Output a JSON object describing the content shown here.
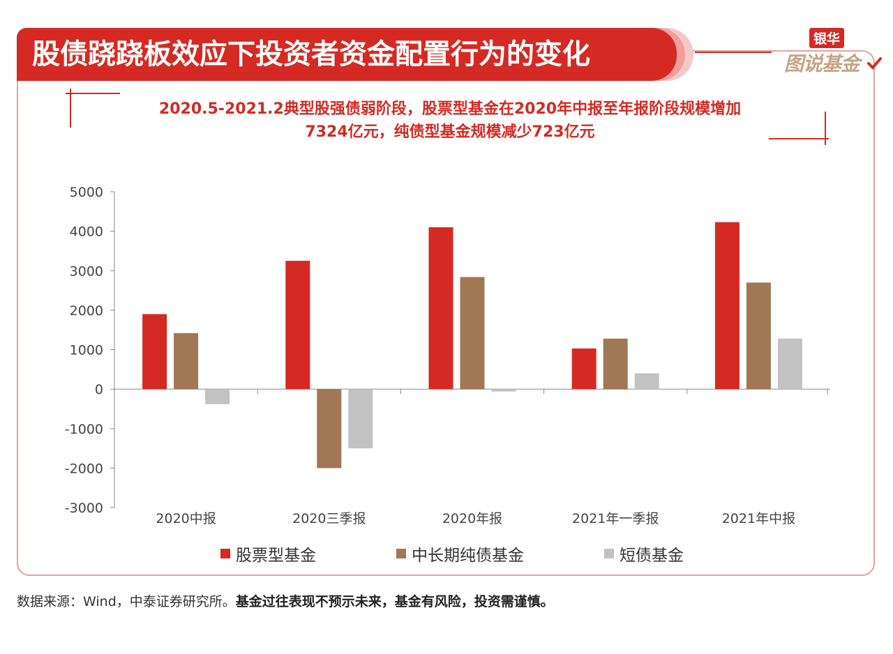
{
  "header": {
    "title": "股债跷跷板效应下投资者资金配置行为的变化",
    "logo_top": "银华",
    "logo_bottom": "图说基金"
  },
  "subtitle": {
    "line1": "2020.5-2021.2典型股强债弱阶段，股票型基金在2020年中报至年报阶段规模增加",
    "line2": "7324亿元，纯债型基金规模减少723亿元"
  },
  "colors": {
    "accent": "#d42a23",
    "series": [
      "#d42a23",
      "#a07855",
      "#c2c2c2"
    ]
  },
  "chart_data": {
    "type": "bar",
    "categories": [
      "2020中报",
      "2020三季报",
      "2020年报",
      "2021年一季报",
      "2021年中报"
    ],
    "series": [
      {
        "name": "股票型基金",
        "values": [
          1900,
          3250,
          4100,
          1030,
          4230
        ]
      },
      {
        "name": "中长期纯债基金",
        "values": [
          1420,
          -2000,
          2840,
          1280,
          2700
        ]
      },
      {
        "name": "短债基金",
        "values": [
          -380,
          -1500,
          -60,
          400,
          1280
        ]
      }
    ],
    "yticks": [
      "5000",
      "4000",
      "3000",
      "2000",
      "1000",
      "0",
      "-1000",
      "-2000",
      "-3000"
    ],
    "ylim": [
      -3000,
      5000
    ],
    "legend_position": "bottom",
    "grid": false
  },
  "footer": {
    "source": "数据来源：Wind，中泰证券研究所。",
    "disclaimer": "基金过往表现不预示未来，基金有风险，投资需谨慎。"
  }
}
